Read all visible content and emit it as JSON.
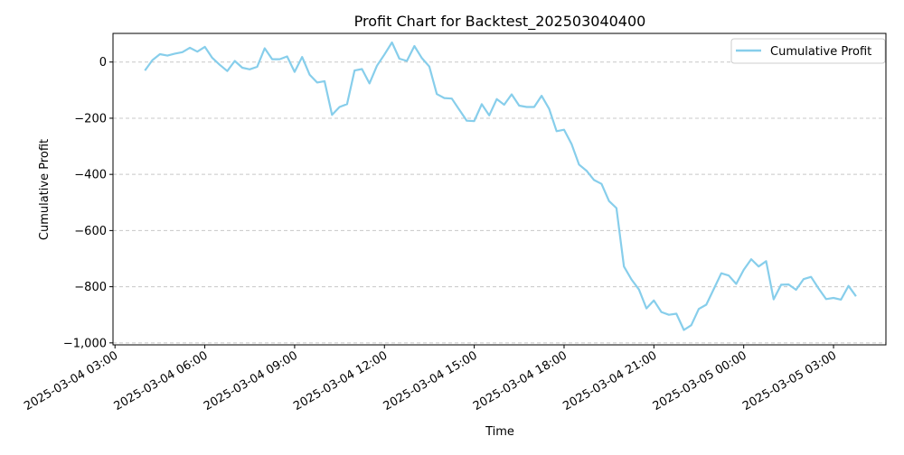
{
  "chart_data": {
    "type": "line",
    "title": "Profit Chart for Backtest_202503040400",
    "xlabel": "Time",
    "ylabel": "Cumulative Profit",
    "ylim": [
      -1000,
      100
    ],
    "yticks": [
      0,
      -200,
      -400,
      -600,
      -800,
      -1000
    ],
    "ytick_labels": [
      "0",
      "−200",
      "−400",
      "−600",
      "−800",
      "−1,000"
    ],
    "xlim": [
      "2025-03-04 02:56",
      "2025-03-05 04:45"
    ],
    "xticks": [
      "2025-03-04 03:00",
      "2025-03-04 06:00",
      "2025-03-04 09:00",
      "2025-03-04 12:00",
      "2025-03-04 15:00",
      "2025-03-04 18:00",
      "2025-03-04 21:00",
      "2025-03-05 00:00",
      "2025-03-05 03:00"
    ],
    "xtick_labels": [
      "2025-03-04 03:00",
      "2025-03-04 06:00",
      "2025-03-04 09:00",
      "2025-03-04 12:00",
      "2025-03-04 15:00",
      "2025-03-04 18:00",
      "2025-03-04 21:00",
      "2025-03-05 00:00",
      "2025-03-05 03:00"
    ],
    "grid": "y-dashed",
    "legend_position": "upper right",
    "series": [
      {
        "name": "Cumulative Profit",
        "color": "#87ceeb",
        "x": [
          "2025-03-04 04:00",
          "2025-03-04 04:15",
          "2025-03-04 04:30",
          "2025-03-04 04:45",
          "2025-03-04 05:00",
          "2025-03-04 05:15",
          "2025-03-04 05:30",
          "2025-03-04 05:45",
          "2025-03-04 06:00",
          "2025-03-04 06:15",
          "2025-03-04 06:30",
          "2025-03-04 06:45",
          "2025-03-04 07:00",
          "2025-03-04 07:15",
          "2025-03-04 07:30",
          "2025-03-04 07:45",
          "2025-03-04 08:00",
          "2025-03-04 08:15",
          "2025-03-04 08:30",
          "2025-03-04 08:45",
          "2025-03-04 09:00",
          "2025-03-04 09:15",
          "2025-03-04 09:30",
          "2025-03-04 09:45",
          "2025-03-04 10:00",
          "2025-03-04 10:15",
          "2025-03-04 10:30",
          "2025-03-04 10:45",
          "2025-03-04 11:00",
          "2025-03-04 11:15",
          "2025-03-04 11:30",
          "2025-03-04 11:45",
          "2025-03-04 12:00",
          "2025-03-04 12:15",
          "2025-03-04 12:30",
          "2025-03-04 12:45",
          "2025-03-04 13:00",
          "2025-03-04 13:15",
          "2025-03-04 13:30",
          "2025-03-04 13:45",
          "2025-03-04 14:00",
          "2025-03-04 14:15",
          "2025-03-04 14:30",
          "2025-03-04 14:45",
          "2025-03-04 15:00",
          "2025-03-04 15:15",
          "2025-03-04 15:30",
          "2025-03-04 15:45",
          "2025-03-04 16:00",
          "2025-03-04 16:15",
          "2025-03-04 16:30",
          "2025-03-04 16:45",
          "2025-03-04 17:00",
          "2025-03-04 17:15",
          "2025-03-04 17:30",
          "2025-03-04 17:45",
          "2025-03-04 18:00",
          "2025-03-04 18:15",
          "2025-03-04 18:30",
          "2025-03-04 18:45",
          "2025-03-04 19:00",
          "2025-03-04 19:15",
          "2025-03-04 19:30",
          "2025-03-04 19:45",
          "2025-03-04 20:00",
          "2025-03-04 20:15",
          "2025-03-04 20:30",
          "2025-03-04 20:45",
          "2025-03-04 21:00",
          "2025-03-04 21:15",
          "2025-03-04 21:30",
          "2025-03-04 21:45",
          "2025-03-04 22:00",
          "2025-03-04 22:15",
          "2025-03-04 22:30",
          "2025-03-04 22:45",
          "2025-03-04 23:00",
          "2025-03-04 23:15",
          "2025-03-04 23:30",
          "2025-03-04 23:45",
          "2025-03-05 00:00",
          "2025-03-05 00:15",
          "2025-03-05 00:30",
          "2025-03-05 00:45",
          "2025-03-05 01:00",
          "2025-03-05 01:15",
          "2025-03-05 01:30",
          "2025-03-05 01:45",
          "2025-03-05 02:00",
          "2025-03-05 02:15",
          "2025-03-05 02:30",
          "2025-03-05 02:45",
          "2025-03-05 03:00",
          "2025-03-05 03:15",
          "2025-03-05 03:30",
          "2025-03-05 03:45"
        ],
        "y": [
          -30,
          7,
          28,
          23,
          30,
          35,
          51,
          37,
          54,
          15,
          -10,
          -32,
          4,
          -20,
          -26,
          -17,
          49,
          10,
          10,
          20,
          -35,
          18,
          -45,
          -73,
          -68,
          -188,
          -160,
          -150,
          -30,
          -25,
          -76,
          -13,
          27,
          70,
          12,
          4,
          57,
          14,
          -16,
          -114,
          -128,
          -130,
          -170,
          -209,
          -210,
          -150,
          -190,
          -132,
          -152,
          -115,
          -155,
          -160,
          -160,
          -120,
          -166,
          -246,
          -241,
          -292,
          -365,
          -387,
          -420,
          -434,
          -495,
          -520,
          -728,
          -774,
          -810,
          -877,
          -849,
          -890,
          -900,
          -896,
          -954,
          -937,
          -879,
          -864,
          -808,
          -752,
          -760,
          -790,
          -740,
          -702,
          -728,
          -709,
          -845,
          -793,
          -792,
          -811,
          -773,
          -765,
          -806,
          -844,
          -840,
          -846,
          -797,
          -834
        ]
      }
    ]
  }
}
